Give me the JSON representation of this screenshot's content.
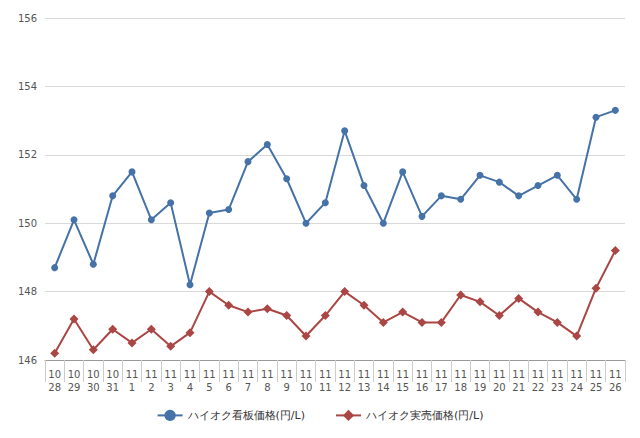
{
  "chart_data": {
    "type": "line",
    "categories": [
      "10\n28",
      "10\n29",
      "10\n30",
      "10\n31",
      "11\n1",
      "11\n2",
      "11\n3",
      "11\n4",
      "11\n5",
      "11\n6",
      "11\n7",
      "11\n8",
      "11\n9",
      "11\n10",
      "11\n11",
      "11\n12",
      "11\n13",
      "11\n14",
      "11\n15",
      "11\n16",
      "11\n17",
      "11\n18",
      "11\n19",
      "11\n20",
      "11\n21",
      "11\n22",
      "11\n23",
      "11\n24",
      "11\n25",
      "11\n26"
    ],
    "series": [
      {
        "name": "ハイオク看板価格(円/L)",
        "color": "#4572a7",
        "marker": "circle",
        "values": [
          148.7,
          150.1,
          148.8,
          150.8,
          151.5,
          150.1,
          150.6,
          148.2,
          150.3,
          150.4,
          151.8,
          152.3,
          151.3,
          150.0,
          150.6,
          152.7,
          151.1,
          150.0,
          151.5,
          150.2,
          150.8,
          150.7,
          151.4,
          151.2,
          150.8,
          151.1,
          151.4,
          150.7,
          153.1,
          153.3
        ]
      },
      {
        "name": "ハイオク実売価格(円/L)",
        "color": "#aa4643",
        "marker": "diamond",
        "values": [
          146.2,
          147.2,
          146.3,
          146.9,
          146.5,
          146.9,
          146.4,
          146.8,
          148.0,
          147.6,
          147.4,
          147.5,
          147.3,
          146.7,
          147.3,
          148.0,
          147.6,
          147.1,
          147.4,
          147.1,
          147.1,
          147.9,
          147.7,
          147.3,
          147.8,
          147.4,
          147.1,
          146.7,
          148.1,
          149.2
        ]
      }
    ],
    "ylim": [
      146,
      156
    ],
    "yticks": [
      146,
      148,
      150,
      152,
      154,
      156
    ],
    "grid": true,
    "legend": "bottom"
  }
}
